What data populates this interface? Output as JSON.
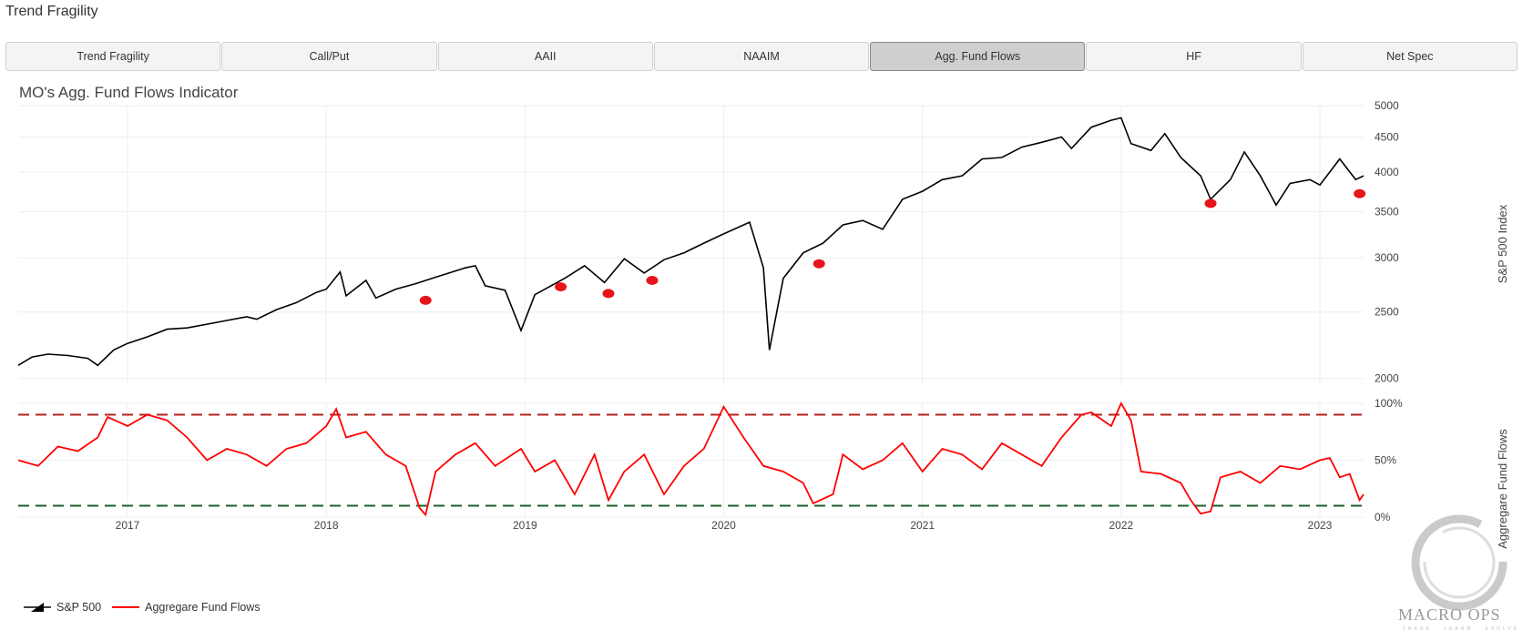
{
  "page": {
    "title": "Trend Fragility"
  },
  "tabs": [
    {
      "label": "Trend Fragility",
      "active": false
    },
    {
      "label": "Call/Put",
      "active": false
    },
    {
      "label": "AAII",
      "active": false
    },
    {
      "label": "NAAIM",
      "active": false
    },
    {
      "label": "Agg. Fund Flows",
      "active": true
    },
    {
      "label": "HF",
      "active": false
    },
    {
      "label": "Net Spec",
      "active": false
    }
  ],
  "logo": {
    "text": "MACRO OPS",
    "subtext": "TRADE · LEARN · EVOLVE"
  },
  "chart_data": {
    "type": "line",
    "title": "MO's Agg. Fund Flows Indicator",
    "x_ticks": [
      "2017",
      "2018",
      "2019",
      "2020",
      "2021",
      "2022",
      "2023"
    ],
    "x_range": [
      2016.45,
      2023.22
    ],
    "top_panel": {
      "ylabel": "S&P 500 Index",
      "scale": "log",
      "ylim": [
        1950,
        5000
      ],
      "y_ticks": [
        2000,
        2500,
        3000,
        3500,
        4000,
        4500,
        5000
      ],
      "series": {
        "name": "S&P 500",
        "color": "#000000",
        "points": [
          [
            2016.45,
            2090
          ],
          [
            2016.52,
            2150
          ],
          [
            2016.6,
            2170
          ],
          [
            2016.7,
            2160
          ],
          [
            2016.8,
            2140
          ],
          [
            2016.85,
            2090
          ],
          [
            2016.93,
            2200
          ],
          [
            2017.0,
            2250
          ],
          [
            2017.1,
            2300
          ],
          [
            2017.2,
            2360
          ],
          [
            2017.3,
            2370
          ],
          [
            2017.4,
            2400
          ],
          [
            2017.5,
            2430
          ],
          [
            2017.6,
            2460
          ],
          [
            2017.65,
            2440
          ],
          [
            2017.75,
            2520
          ],
          [
            2017.85,
            2580
          ],
          [
            2017.95,
            2670
          ],
          [
            2018.0,
            2700
          ],
          [
            2018.07,
            2860
          ],
          [
            2018.1,
            2640
          ],
          [
            2018.2,
            2780
          ],
          [
            2018.25,
            2620
          ],
          [
            2018.35,
            2700
          ],
          [
            2018.45,
            2750
          ],
          [
            2018.55,
            2810
          ],
          [
            2018.7,
            2900
          ],
          [
            2018.75,
            2920
          ],
          [
            2018.8,
            2730
          ],
          [
            2018.9,
            2690
          ],
          [
            2018.98,
            2350
          ],
          [
            2019.05,
            2650
          ],
          [
            2019.2,
            2800
          ],
          [
            2019.3,
            2920
          ],
          [
            2019.4,
            2760
          ],
          [
            2019.5,
            2990
          ],
          [
            2019.6,
            2850
          ],
          [
            2019.7,
            2980
          ],
          [
            2019.8,
            3050
          ],
          [
            2019.9,
            3150
          ],
          [
            2020.0,
            3250
          ],
          [
            2020.13,
            3380
          ],
          [
            2020.2,
            2900
          ],
          [
            2020.23,
            2200
          ],
          [
            2020.3,
            2800
          ],
          [
            2020.4,
            3050
          ],
          [
            2020.5,
            3150
          ],
          [
            2020.6,
            3350
          ],
          [
            2020.7,
            3400
          ],
          [
            2020.8,
            3300
          ],
          [
            2020.9,
            3650
          ],
          [
            2021.0,
            3750
          ],
          [
            2021.1,
            3900
          ],
          [
            2021.2,
            3950
          ],
          [
            2021.3,
            4180
          ],
          [
            2021.4,
            4200
          ],
          [
            2021.5,
            4350
          ],
          [
            2021.6,
            4420
          ],
          [
            2021.7,
            4500
          ],
          [
            2021.75,
            4330
          ],
          [
            2021.85,
            4650
          ],
          [
            2021.95,
            4760
          ],
          [
            2022.0,
            4800
          ],
          [
            2022.05,
            4400
          ],
          [
            2022.15,
            4300
          ],
          [
            2022.22,
            4550
          ],
          [
            2022.3,
            4200
          ],
          [
            2022.4,
            3950
          ],
          [
            2022.45,
            3650
          ],
          [
            2022.55,
            3900
          ],
          [
            2022.62,
            4280
          ],
          [
            2022.7,
            3950
          ],
          [
            2022.78,
            3580
          ],
          [
            2022.85,
            3850
          ],
          [
            2022.95,
            3900
          ],
          [
            2023.0,
            3830
          ],
          [
            2023.1,
            4180
          ],
          [
            2023.18,
            3900
          ],
          [
            2023.22,
            3950
          ]
        ]
      },
      "markers": [
        [
          2018.5,
          2600
        ],
        [
          2019.18,
          2720
        ],
        [
          2019.42,
          2660
        ],
        [
          2019.64,
          2780
        ],
        [
          2020.48,
          2940
        ],
        [
          2022.45,
          3600
        ],
        [
          2023.2,
          3720
        ]
      ]
    },
    "bottom_panel": {
      "ylabel": "Aggregare Fund Flows",
      "ylim": [
        0,
        100
      ],
      "y_ticks": [
        "0%",
        "50%",
        "100%"
      ],
      "upper_threshold": 90,
      "lower_threshold": 10,
      "series": {
        "name": "Aggregare Fund Flows",
        "color": "#ff0000",
        "points": [
          [
            2016.45,
            50
          ],
          [
            2016.55,
            45
          ],
          [
            2016.65,
            62
          ],
          [
            2016.75,
            58
          ],
          [
            2016.85,
            70
          ],
          [
            2016.9,
            88
          ],
          [
            2017.0,
            80
          ],
          [
            2017.1,
            90
          ],
          [
            2017.2,
            85
          ],
          [
            2017.3,
            70
          ],
          [
            2017.4,
            50
          ],
          [
            2017.5,
            60
          ],
          [
            2017.6,
            55
          ],
          [
            2017.7,
            45
          ],
          [
            2017.8,
            60
          ],
          [
            2017.9,
            65
          ],
          [
            2018.0,
            80
          ],
          [
            2018.05,
            95
          ],
          [
            2018.1,
            70
          ],
          [
            2018.2,
            75
          ],
          [
            2018.3,
            55
          ],
          [
            2018.4,
            45
          ],
          [
            2018.47,
            8
          ],
          [
            2018.5,
            2
          ],
          [
            2018.55,
            40
          ],
          [
            2018.65,
            55
          ],
          [
            2018.75,
            65
          ],
          [
            2018.85,
            45
          ],
          [
            2018.98,
            60
          ],
          [
            2019.05,
            40
          ],
          [
            2019.15,
            50
          ],
          [
            2019.25,
            20
          ],
          [
            2019.35,
            55
          ],
          [
            2019.42,
            15
          ],
          [
            2019.5,
            40
          ],
          [
            2019.6,
            55
          ],
          [
            2019.7,
            20
          ],
          [
            2019.8,
            45
          ],
          [
            2019.9,
            60
          ],
          [
            2020.0,
            97
          ],
          [
            2020.1,
            70
          ],
          [
            2020.2,
            45
          ],
          [
            2020.3,
            40
          ],
          [
            2020.4,
            30
          ],
          [
            2020.45,
            12
          ],
          [
            2020.55,
            20
          ],
          [
            2020.6,
            55
          ],
          [
            2020.7,
            42
          ],
          [
            2020.8,
            50
          ],
          [
            2020.9,
            65
          ],
          [
            2021.0,
            40
          ],
          [
            2021.1,
            60
          ],
          [
            2021.2,
            55
          ],
          [
            2021.3,
            42
          ],
          [
            2021.4,
            65
          ],
          [
            2021.5,
            55
          ],
          [
            2021.6,
            45
          ],
          [
            2021.7,
            70
          ],
          [
            2021.8,
            90
          ],
          [
            2021.85,
            92
          ],
          [
            2021.95,
            80
          ],
          [
            2022.0,
            100
          ],
          [
            2022.05,
            85
          ],
          [
            2022.1,
            40
          ],
          [
            2022.2,
            38
          ],
          [
            2022.3,
            30
          ],
          [
            2022.35,
            15
          ],
          [
            2022.4,
            3
          ],
          [
            2022.45,
            5
          ],
          [
            2022.5,
            35
          ],
          [
            2022.6,
            40
          ],
          [
            2022.7,
            30
          ],
          [
            2022.8,
            45
          ],
          [
            2022.9,
            42
          ],
          [
            2023.0,
            50
          ],
          [
            2023.05,
            52
          ],
          [
            2023.1,
            35
          ],
          [
            2023.15,
            38
          ],
          [
            2023.2,
            15
          ],
          [
            2023.22,
            20
          ]
        ]
      }
    },
    "legend": [
      {
        "label": "S&P 500",
        "color": "#000000"
      },
      {
        "label": "Aggregare Fund Flows",
        "color": "#ff0000"
      }
    ],
    "legend_position": "bottom-left"
  }
}
